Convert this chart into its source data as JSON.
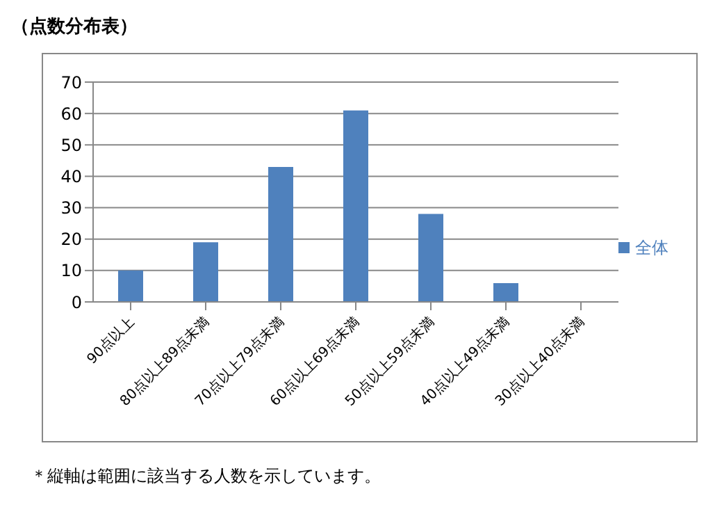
{
  "chart_data": {
    "type": "bar",
    "title": "（点数分布表）",
    "categories": [
      "90点以上",
      "80点以上89点未満",
      "70点以上79点未満",
      "60点以上69点未満",
      "50点以上59点未満",
      "40点以上49点未満",
      "30点以上40点未満"
    ],
    "series": [
      {
        "name": "全体",
        "color": "#4f81bd",
        "values": [
          10,
          19,
          43,
          61,
          28,
          6,
          0
        ]
      }
    ],
    "ylim": [
      0,
      70
    ],
    "yticks": [
      0,
      10,
      20,
      30,
      40,
      50,
      60,
      70
    ],
    "grid": "y",
    "legend": "right",
    "annotations": [
      "＊縦軸は範囲に該当する人数を示しています。"
    ]
  }
}
